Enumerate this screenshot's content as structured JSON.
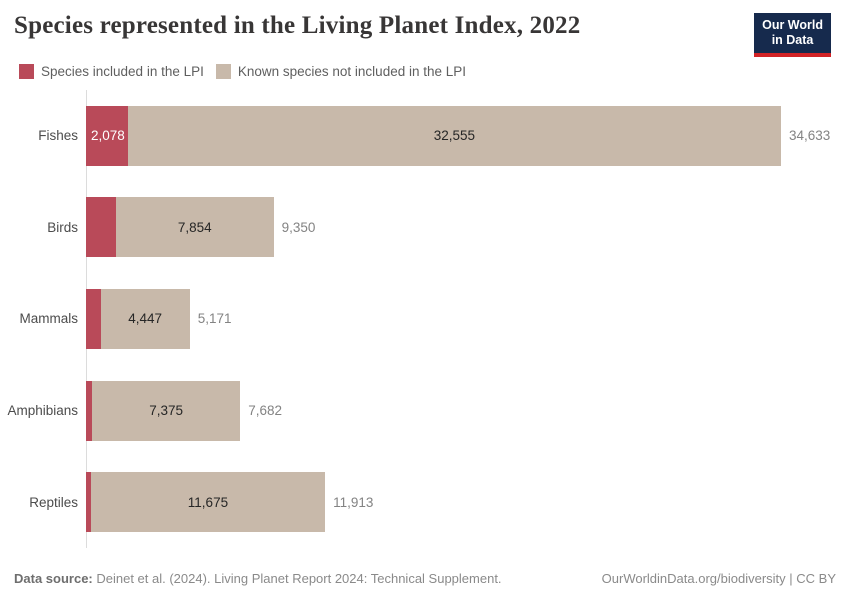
{
  "header": {
    "logo_line1": "Our World",
    "logo_line2": "in Data"
  },
  "colors": {
    "included": "#b94a59",
    "not_included": "#c8b9aa",
    "logo_bg": "#162a4d",
    "logo_bar": "#d22326",
    "axis": "#dcdcdc"
  },
  "chart_data": {
    "type": "bar",
    "orientation": "horizontal",
    "title": "Species represented in the Living Planet Index, 2022",
    "legend_position": "top",
    "grid": false,
    "xmax": 34633,
    "categories": [
      "Fishes",
      "Birds",
      "Mammals",
      "Amphibians",
      "Reptiles"
    ],
    "series": [
      {
        "name": "Species included in the LPI",
        "color": "#b94a59"
      },
      {
        "name": "Known species not included in the LPI",
        "color": "#c8b9aa"
      }
    ],
    "rows": [
      {
        "category": "Fishes",
        "not_included": 32555,
        "total": 34633,
        "included_label": "2,078",
        "not_included_label": "32,555",
        "total_label": "34,633"
      },
      {
        "category": "Birds",
        "not_included": 7854,
        "total": 9350,
        "included_label": "",
        "not_included_label": "7,854",
        "total_label": "9,350"
      },
      {
        "category": "Mammals",
        "not_included": 4447,
        "total": 5171,
        "included_label": "",
        "not_included_label": "4,447",
        "total_label": "5,171"
      },
      {
        "category": "Amphibians",
        "not_included": 7375,
        "total": 7682,
        "included_label": "",
        "not_included_label": "7,375",
        "total_label": "7,682"
      },
      {
        "category": "Reptiles",
        "not_included": 11675,
        "total": 11913,
        "included_label": "",
        "not_included_label": "11,675",
        "total_label": "11,913"
      }
    ]
  },
  "footer": {
    "source_label": "Data source:",
    "source_text": " Deinet et al. (2024). Living Planet Report 2024: Technical Supplement.",
    "right_text": "OurWorldinData.org/biodiversity | CC BY"
  }
}
